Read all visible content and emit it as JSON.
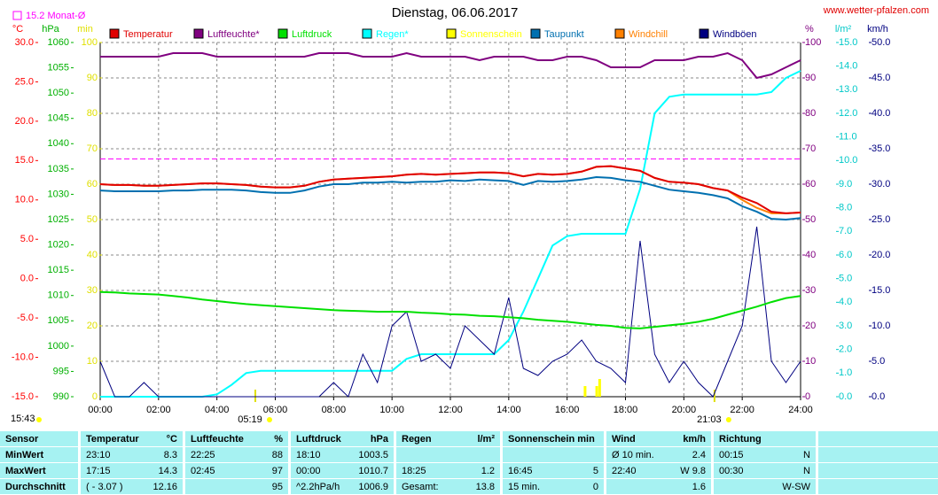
{
  "chart_data": {
    "type": "line",
    "title": "Dienstag, 06.06.2017",
    "source": "www.wetter-pfalzen.com",
    "updated": "15:43",
    "monthly_avg": {
      "label": "15.2 Monat-Ø",
      "value": 15.2,
      "axis": "temp",
      "color": "#ff00ff"
    },
    "sun_marks": [
      {
        "label": "05:19",
        "x": 5.3167
      },
      {
        "label": "21:03",
        "x": 21.05
      }
    ],
    "grid": true,
    "xlim": [
      0,
      24
    ],
    "xticks": [
      {
        "value": 0,
        "label": "00:00"
      },
      {
        "value": 2,
        "label": "02:00"
      },
      {
        "value": 4,
        "label": "04:00"
      },
      {
        "value": 6,
        "label": "06:00"
      },
      {
        "value": 8,
        "label": "08:00"
      },
      {
        "value": 10,
        "label": "10:00"
      },
      {
        "value": 12,
        "label": "12:00"
      },
      {
        "value": 14,
        "label": "14:00"
      },
      {
        "value": 16,
        "label": "16:00"
      },
      {
        "value": 18,
        "label": "18:00"
      },
      {
        "value": 20,
        "label": "20:00"
      },
      {
        "value": 22,
        "label": "22:00"
      },
      {
        "value": 24,
        "label": "24:00"
      }
    ],
    "axes": {
      "temp": {
        "label": "°C",
        "color": "#ff0000",
        "lim": [
          -15,
          30
        ],
        "ticks": [
          {
            "value": -15,
            "label": "-15.0"
          },
          {
            "value": -10,
            "label": "-10.0"
          },
          {
            "value": -5,
            "label": "-5.0"
          },
          {
            "value": 0,
            "label": "0.0"
          },
          {
            "value": 5,
            "label": "5.0"
          },
          {
            "value": 10,
            "label": "10.0"
          },
          {
            "value": 15,
            "label": "15.0"
          },
          {
            "value": 20,
            "label": "20.0"
          },
          {
            "value": 25,
            "label": "25.0"
          },
          {
            "value": 30,
            "label": "30.0"
          }
        ]
      },
      "hpa": {
        "label": "hPa",
        "color": "#00b000",
        "lim": [
          990,
          1060
        ],
        "ticks": [
          990,
          995,
          1000,
          1005,
          1010,
          1015,
          1020,
          1025,
          1030,
          1035,
          1040,
          1045,
          1050,
          1055,
          1060
        ]
      },
      "min": {
        "label": "min",
        "color": "#e0e000",
        "lim": [
          0,
          100
        ],
        "ticks": [
          0,
          10,
          20,
          30,
          40,
          50,
          60,
          70,
          80,
          90,
          100
        ]
      },
      "pct": {
        "label": "%",
        "color": "#800080",
        "lim": [
          0,
          100
        ],
        "ticks": [
          0,
          10,
          20,
          30,
          40,
          50,
          60,
          70,
          80,
          90,
          100
        ]
      },
      "rain": {
        "label": "l/m²",
        "color": "#00c8c8",
        "lim": [
          0,
          15
        ],
        "ticks": [
          {
            "value": 0,
            "label": "0.0"
          },
          {
            "value": 1,
            "label": "1.0"
          },
          {
            "value": 2,
            "label": "2.0"
          },
          {
            "value": 3,
            "label": "3.0"
          },
          {
            "value": 4,
            "label": "4.0"
          },
          {
            "value": 5,
            "label": "5.0"
          },
          {
            "value": 6,
            "label": "6.0"
          },
          {
            "value": 7,
            "label": "7.0"
          },
          {
            "value": 8,
            "label": "8.0"
          },
          {
            "value": 9,
            "label": "9.0"
          },
          {
            "value": 10,
            "label": "10.0"
          },
          {
            "value": 11,
            "label": "11.0"
          },
          {
            "value": 12,
            "label": "12.0"
          },
          {
            "value": 13,
            "label": "13.0"
          },
          {
            "value": 14,
            "label": "14.0"
          },
          {
            "value": 15,
            "label": "15.0"
          }
        ]
      },
      "wind": {
        "label": "km/h",
        "color": "#000080",
        "lim": [
          0,
          50
        ],
        "ticks": [
          {
            "value": 0,
            "label": "0.0"
          },
          {
            "value": 5,
            "label": "5.0"
          },
          {
            "value": 10,
            "label": "10.0"
          },
          {
            "value": 15,
            "label": "15.0"
          },
          {
            "value": 20,
            "label": "20.0"
          },
          {
            "value": 25,
            "label": "25.0"
          },
          {
            "value": 30,
            "label": "30.0"
          },
          {
            "value": 35,
            "label": "35.0"
          },
          {
            "value": 40,
            "label": "40.0"
          },
          {
            "value": 45,
            "label": "45.0"
          },
          {
            "value": 50,
            "label": "50.0"
          }
        ]
      }
    },
    "x": [
      0,
      0.5,
      1,
      1.5,
      2,
      2.5,
      3,
      3.5,
      4,
      4.5,
      5,
      5.5,
      6,
      6.5,
      7,
      7.5,
      8,
      8.5,
      9,
      9.5,
      10,
      10.5,
      11,
      11.5,
      12,
      12.5,
      13,
      13.5,
      14,
      14.5,
      15,
      15.5,
      16,
      16.5,
      17,
      17.5,
      18,
      18.5,
      19,
      19.5,
      20,
      20.5,
      21,
      21.5,
      22,
      22.5,
      23,
      23.5,
      24
    ],
    "series": [
      {
        "name": "Temperatur",
        "color": "#e00000",
        "axis": "temp",
        "values": [
          12.0,
          11.9,
          11.9,
          11.8,
          11.8,
          11.9,
          12.0,
          12.1,
          12.1,
          12.0,
          11.9,
          11.7,
          11.6,
          11.6,
          11.8,
          12.3,
          12.6,
          12.7,
          12.8,
          12.9,
          13.0,
          13.2,
          13.3,
          13.2,
          13.3,
          13.4,
          13.5,
          13.5,
          13.4,
          13.0,
          13.3,
          13.2,
          13.3,
          13.6,
          14.2,
          14.3,
          14.0,
          13.7,
          12.8,
          12.3,
          12.2,
          12.0,
          11.5,
          11.2,
          10.3,
          9.6,
          8.5,
          8.3,
          8.4
        ]
      },
      {
        "name": "Luftfeuchte*",
        "color": "#800080",
        "axis": "pct",
        "values": [
          96,
          96,
          96,
          96,
          96,
          97,
          97,
          97,
          96,
          96,
          96,
          96,
          96,
          96,
          96,
          97,
          97,
          97,
          96,
          96,
          96,
          97,
          96,
          96,
          96,
          96,
          95,
          96,
          96,
          96,
          95,
          95,
          96,
          96,
          95,
          93,
          93,
          93,
          95,
          95,
          95,
          96,
          96,
          97,
          95,
          90,
          91,
          93,
          95
        ]
      },
      {
        "name": "Luftdruck",
        "color": "#00e000",
        "axis": "hpa",
        "values": [
          1010.7,
          1010.6,
          1010.4,
          1010.3,
          1010.2,
          1009.9,
          1009.6,
          1009.2,
          1008.9,
          1008.6,
          1008.3,
          1008.1,
          1007.9,
          1007.7,
          1007.5,
          1007.3,
          1007.1,
          1007.0,
          1006.9,
          1006.8,
          1006.8,
          1006.8,
          1006.6,
          1006.5,
          1006.3,
          1006.2,
          1006.0,
          1005.9,
          1005.7,
          1005.5,
          1005.2,
          1005.0,
          1004.8,
          1004.5,
          1004.2,
          1004.0,
          1003.6,
          1003.5,
          1003.8,
          1004.1,
          1004.4,
          1004.8,
          1005.4,
          1006.2,
          1007.0,
          1007.8,
          1008.7,
          1009.5,
          1009.9
        ]
      },
      {
        "name": "Regen*",
        "color": "#00ffff",
        "axis": "rain",
        "values": [
          0,
          0,
          0,
          0,
          0,
          0,
          0,
          0,
          0.1,
          0.5,
          1.0,
          1.1,
          1.1,
          1.1,
          1.1,
          1.1,
          1.1,
          1.1,
          1.1,
          1.1,
          1.1,
          1.6,
          1.8,
          1.8,
          1.8,
          1.8,
          1.8,
          1.8,
          2.4,
          3.6,
          5.0,
          6.4,
          6.8,
          6.9,
          6.9,
          6.9,
          6.9,
          8.8,
          12.0,
          12.7,
          12.8,
          12.8,
          12.8,
          12.8,
          12.8,
          12.8,
          12.9,
          13.5,
          13.8
        ]
      },
      {
        "name": "Sonnenschein",
        "color": "#ffff00",
        "axis": "min",
        "bars": true,
        "x": [
          16.6,
          17.0,
          17.1
        ],
        "values": [
          3,
          3,
          5
        ]
      },
      {
        "name": "Taupunkt",
        "color": "#0070b0",
        "axis": "temp",
        "values": [
          11.2,
          11.1,
          11.1,
          11.1,
          11.1,
          11.2,
          11.2,
          11.3,
          11.3,
          11.3,
          11.2,
          11.0,
          10.9,
          10.9,
          11.2,
          11.7,
          12.0,
          12.0,
          12.2,
          12.2,
          12.3,
          12.2,
          12.3,
          12.3,
          12.5,
          12.4,
          12.6,
          12.5,
          12.4,
          11.9,
          12.4,
          12.3,
          12.4,
          12.6,
          12.9,
          12.8,
          12.5,
          12.3,
          11.8,
          11.3,
          11.1,
          10.9,
          10.6,
          10.2,
          9.2,
          8.5,
          7.6,
          7.5,
          7.7
        ]
      },
      {
        "name": "Windchill",
        "color": "#ff8000",
        "axis": "temp",
        "values": [
          12.0,
          11.9,
          11.9,
          11.8,
          11.8,
          11.9,
          12.0,
          12.1,
          12.1,
          12.0,
          11.9,
          11.7,
          11.6,
          11.6,
          11.8,
          12.3,
          12.6,
          12.7,
          12.8,
          12.9,
          13.0,
          13.2,
          13.3,
          13.2,
          13.3,
          13.4,
          13.5,
          13.5,
          13.4,
          13.0,
          13.3,
          13.2,
          13.3,
          13.6,
          14.2,
          14.3,
          14.0,
          13.7,
          12.8,
          12.3,
          12.2,
          12.0,
          11.5,
          11.2,
          10.0,
          9.0,
          8.3,
          8.3,
          8.4
        ]
      },
      {
        "name": "Windböen",
        "color": "#000080",
        "axis": "wind",
        "values": [
          5,
          0,
          0,
          2,
          0,
          0,
          0,
          0,
          0,
          0,
          0,
          0,
          0,
          0,
          0,
          0,
          2,
          0,
          6,
          2,
          10,
          12,
          5,
          6,
          4,
          10,
          8,
          6,
          14,
          4,
          3,
          5,
          6,
          8,
          5,
          4,
          2,
          22,
          6,
          2,
          5,
          2,
          0,
          5,
          10,
          24,
          5,
          2,
          5
        ]
      }
    ]
  },
  "table": {
    "header": [
      {
        "l": "Sensor"
      },
      {
        "l": "Temperatur",
        "r": "°C"
      },
      {
        "l": "Luftfeuchte",
        "r": "%"
      },
      {
        "l": "Luftdruck",
        "r": "hPa"
      },
      {
        "l": "Regen",
        "r": "l/m²"
      },
      {
        "l": "Sonnenschein min"
      },
      {
        "l": "Wind",
        "r": "km/h"
      },
      {
        "l": "Richtung"
      }
    ],
    "rows": [
      [
        {
          "l": "MinWert"
        },
        {
          "l": "23:10",
          "r": "8.3"
        },
        {
          "l": "22:25",
          "r": "88"
        },
        {
          "l": "18:10",
          "r": "1003.5"
        },
        {},
        {},
        {
          "l": "Ø 10 min.",
          "r": "2.4"
        },
        {
          "l": "00:15",
          "r": "N"
        }
      ],
      [
        {
          "l": "MaxWert"
        },
        {
          "l": "17:15",
          "r": "14.3"
        },
        {
          "l": "02:45",
          "r": "97"
        },
        {
          "l": "00:00",
          "r": "1010.7"
        },
        {
          "l": "18:25",
          "r": "1.2"
        },
        {
          "l": "16:45",
          "r": "5"
        },
        {
          "l": "22:40",
          "r": "W 9.8"
        },
        {
          "l": "00:30",
          "r": "N"
        }
      ],
      [
        {
          "l": "Durchschnitt"
        },
        {
          "l": "( - 3.07 )",
          "r": "12.16"
        },
        {
          "r": "95"
        },
        {
          "l": "^2.2hPa/h",
          "r": "1006.9"
        },
        {
          "l": "Gesamt:",
          "r": "13.8"
        },
        {
          "l": "15 min.",
          "r": "0"
        },
        {
          "r": "1.6"
        },
        {
          "r": "W-SW"
        }
      ]
    ]
  }
}
